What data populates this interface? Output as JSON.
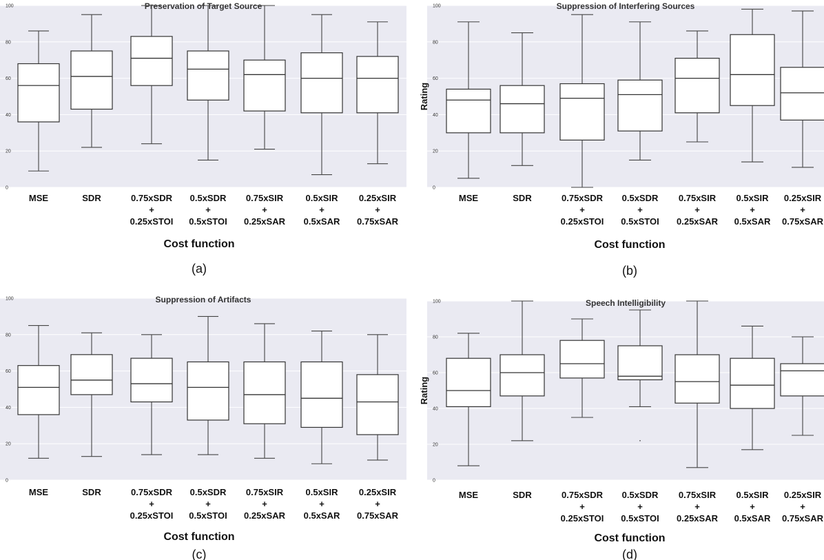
{
  "chart_data": [
    {
      "type": "box",
      "panel_label": "(a)",
      "title": "Preservation of Target Source",
      "xlabel": "Cost function",
      "ylabel": "",
      "ylim": [
        0,
        100
      ],
      "yticks": [
        "0",
        "20",
        "40",
        "60",
        "80",
        "100"
      ],
      "categories": [
        [
          "MSE"
        ],
        [
          "SDR"
        ],
        [
          "0.75xSDR",
          "+",
          "0.25xSTOI"
        ],
        [
          "0.5xSDR",
          "+",
          "0.5xSTOI"
        ],
        [
          "0.75xSIR",
          "+",
          "0.25xSAR"
        ],
        [
          "0.5xSIR",
          "+",
          "0.5xSAR"
        ],
        [
          "0.25xSIR",
          "+",
          "0.75xSAR"
        ]
      ],
      "boxes": [
        {
          "min": 9,
          "q1": 36,
          "median": 56,
          "q3": 68,
          "max": 86
        },
        {
          "min": 22,
          "q1": 43,
          "median": 61,
          "q3": 75,
          "max": 95
        },
        {
          "min": 24,
          "q1": 56,
          "median": 71,
          "q3": 83,
          "max": 100
        },
        {
          "min": 15,
          "q1": 48,
          "median": 65,
          "q3": 75,
          "max": 100
        },
        {
          "min": 21,
          "q1": 42,
          "median": 62,
          "q3": 70,
          "max": 100
        },
        {
          "min": 7,
          "q1": 41,
          "median": 60,
          "q3": 74,
          "max": 95
        },
        {
          "min": 13,
          "q1": 41,
          "median": 60,
          "q3": 72,
          "max": 91
        }
      ]
    },
    {
      "type": "box",
      "panel_label": "(b)",
      "title": "Suppression of Interfering Sources",
      "xlabel": "Cost function",
      "ylabel": "Rating",
      "ylim": [
        0,
        100
      ],
      "yticks": [
        "0",
        "20",
        "40",
        "60",
        "80",
        "100"
      ],
      "categories": [
        [
          "MSE"
        ],
        [
          "SDR"
        ],
        [
          "0.75xSDR",
          "+",
          "0.25xSTOI"
        ],
        [
          "0.5xSDR",
          "+",
          "0.5xSTOI"
        ],
        [
          "0.75xSIR",
          "+",
          "0.25xSAR"
        ],
        [
          "0.5xSIR",
          "+",
          "0.5xSAR"
        ],
        [
          "0.25xSIR",
          "+",
          "0.75xSAR"
        ]
      ],
      "boxes": [
        {
          "min": 5,
          "q1": 30,
          "median": 48,
          "q3": 54,
          "max": 91
        },
        {
          "min": 12,
          "q1": 30,
          "median": 46,
          "q3": 56,
          "max": 85
        },
        {
          "min": 0,
          "q1": 26,
          "median": 49,
          "q3": 57,
          "max": 95
        },
        {
          "min": 15,
          "q1": 31,
          "median": 51,
          "q3": 59,
          "max": 91
        },
        {
          "min": 25,
          "q1": 41,
          "median": 60,
          "q3": 71,
          "max": 86
        },
        {
          "min": 14,
          "q1": 45,
          "median": 62,
          "q3": 84,
          "max": 98
        },
        {
          "min": 11,
          "q1": 37,
          "median": 52,
          "q3": 66,
          "max": 97
        }
      ]
    },
    {
      "type": "box",
      "panel_label": "(c)",
      "title": "Suppression of Artifacts",
      "xlabel": "Cost function",
      "ylabel": "",
      "ylim": [
        0,
        100
      ],
      "yticks": [
        "0",
        "20",
        "40",
        "60",
        "80",
        "100"
      ],
      "categories": [
        [
          "MSE"
        ],
        [
          "SDR"
        ],
        [
          "0.75xSDR",
          "+",
          "0.25xSTOI"
        ],
        [
          "0.5xSDR",
          "+",
          "0.5xSTOI"
        ],
        [
          "0.75xSIR",
          "+",
          "0.25xSAR"
        ],
        [
          "0.5xSIR",
          "+",
          "0.5xSAR"
        ],
        [
          "0.25xSIR",
          "+",
          "0.75xSAR"
        ]
      ],
      "boxes": [
        {
          "min": 12,
          "q1": 36,
          "median": 51,
          "q3": 63,
          "max": 85
        },
        {
          "min": 13,
          "q1": 47,
          "median": 55,
          "q3": 69,
          "max": 81
        },
        {
          "min": 14,
          "q1": 43,
          "median": 53,
          "q3": 67,
          "max": 80
        },
        {
          "min": 14,
          "q1": 33,
          "median": 51,
          "q3": 65,
          "max": 90
        },
        {
          "min": 12,
          "q1": 31,
          "median": 47,
          "q3": 65,
          "max": 86
        },
        {
          "min": 9,
          "q1": 29,
          "median": 45,
          "q3": 65,
          "max": 82
        },
        {
          "min": 11,
          "q1": 25,
          "median": 43,
          "q3": 58,
          "max": 80
        }
      ]
    },
    {
      "type": "box",
      "panel_label": "(d)",
      "title": "Speech Intelligibility",
      "xlabel": "Cost function",
      "ylabel": "Rating",
      "ylim": [
        0,
        100
      ],
      "yticks": [
        "0",
        "20",
        "40",
        "60",
        "80",
        "100"
      ],
      "categories": [
        [
          "MSE"
        ],
        [
          "SDR"
        ],
        [
          "0.75xSDR",
          "+",
          "0.25xSTOI"
        ],
        [
          "0.5xSDR",
          "+",
          "0.5xSTOI"
        ],
        [
          "0.75xSIR",
          "+",
          "0.25xSAR"
        ],
        [
          "0.5xSIR",
          "+",
          "0.5xSAR"
        ],
        [
          "0.25xSIR",
          "+",
          "0.75xSAR"
        ]
      ],
      "boxes": [
        {
          "min": 8,
          "q1": 41,
          "median": 50,
          "q3": 68,
          "max": 82
        },
        {
          "min": 22,
          "q1": 47,
          "median": 60,
          "q3": 70,
          "max": 100
        },
        {
          "min": 35,
          "q1": 57,
          "median": 65,
          "q3": 78,
          "max": 90
        },
        {
          "min": 41,
          "q1": 56,
          "median": 58,
          "q3": 75,
          "max": 95,
          "outliers": [
            22
          ]
        },
        {
          "min": 7,
          "q1": 43,
          "median": 55,
          "q3": 70,
          "max": 100
        },
        {
          "min": 17,
          "q1": 40,
          "median": 53,
          "q3": 68,
          "max": 86
        },
        {
          "min": 25,
          "q1": 47,
          "median": 61,
          "q3": 65,
          "max": 80
        }
      ]
    }
  ]
}
